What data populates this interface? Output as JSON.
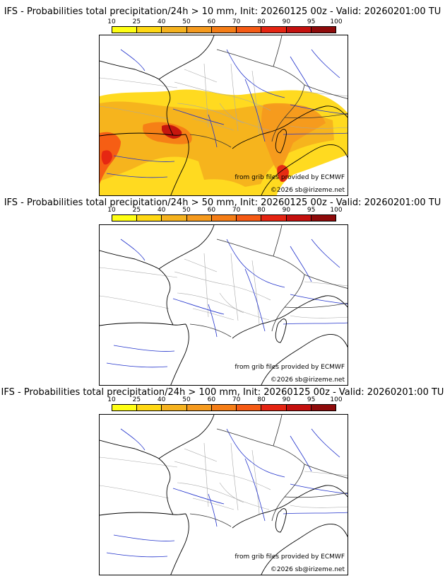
{
  "colorbar": {
    "ticks": [
      "10",
      "25",
      "40",
      "50",
      "60",
      "70",
      "80",
      "90",
      "95",
      "100"
    ],
    "colors": [
      "#ffff14",
      "#ffd814",
      "#f5b21e",
      "#f59a1e",
      "#f57d16",
      "#f55a14",
      "#e52412",
      "#c4100e",
      "#8e0a0a",
      "#560404"
    ]
  },
  "panels": [
    {
      "title": "IFS - Probabilities total precipitation/24h > 10 mm, Init: 20260125 00z - Valid: 20260201:00 TU",
      "source": "from grib files provided by ECMWF",
      "copyright": "©2026 sb@irizeme.net",
      "has_precip": true
    },
    {
      "title": "IFS - Probabilities total precipitation/24h > 50 mm, Init: 20260125 00z - Valid: 20260201:00 TU",
      "source": "from grib files provided by ECMWF",
      "copyright": "©2026 sb@irizeme.net",
      "has_precip": false
    },
    {
      "title": "IFS - Probabilities total precipitation/24h > 100 mm, Init: 20260125 00z - Valid: 20260201:00 TU",
      "source": "from grib files provided by ECMWF",
      "copyright": "©2026 sb@irizeme.net",
      "has_precip": false
    }
  ],
  "map_colors": {
    "coast": "#000000",
    "border": "#333333",
    "region": "#a8a8a8",
    "river": "#2233cc"
  }
}
